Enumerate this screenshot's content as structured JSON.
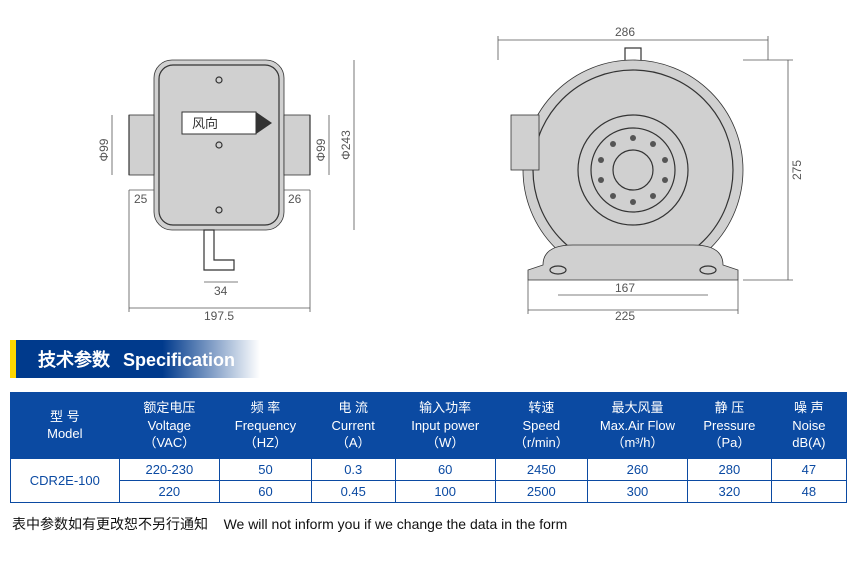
{
  "spec_header": {
    "cn": "技术参数",
    "en": "Specification"
  },
  "columns": [
    {
      "cn": "型 号",
      "en": "Model",
      "unit": ""
    },
    {
      "cn": "额定电压",
      "en": "Voltage",
      "unit": "（VAC）"
    },
    {
      "cn": "频 率",
      "en": "Frequency",
      "unit": "（HZ）"
    },
    {
      "cn": "电 流",
      "en": "Current",
      "unit": "（A）"
    },
    {
      "cn": "输入功率",
      "en": "Input power",
      "unit": "（W）"
    },
    {
      "cn": "转速",
      "en": "Speed",
      "unit": "（r/min）"
    },
    {
      "cn": "最大风量",
      "en": "Max.Air Flow",
      "unit": "（m³/h）"
    },
    {
      "cn": "静 压",
      "en": "Pressure",
      "unit": "（Pa）"
    },
    {
      "cn": "噪 声",
      "en": "Noise",
      "unit": "dB(A)"
    }
  ],
  "model": "CDR2E-100",
  "rows": [
    [
      "220-230",
      "50",
      "0.3",
      "60",
      "2450",
      "260",
      "280",
      "47"
    ],
    [
      "220",
      "60",
      "0.45",
      "100",
      "2500",
      "300",
      "320",
      "48"
    ]
  ],
  "footnote": {
    "cn": "表中参数如有更改恕不另行通知",
    "en": "We will not inform you if we change the data in the form"
  },
  "drawing_left": {
    "width_total": "197.5",
    "left_stub": "25",
    "right_stub": "26",
    "bracket": "34",
    "dia_left": "Φ99",
    "dia_right": "Φ99",
    "dia_body": "Φ243",
    "flow_label": "风向"
  },
  "drawing_right": {
    "top_width": "286",
    "height": "275",
    "base_inner": "167",
    "base_outer": "225"
  },
  "colors": {
    "header_blue": "#0b4aa2",
    "accent_yellow": "#ffd600",
    "line": "#333333",
    "dim": "#555555"
  }
}
